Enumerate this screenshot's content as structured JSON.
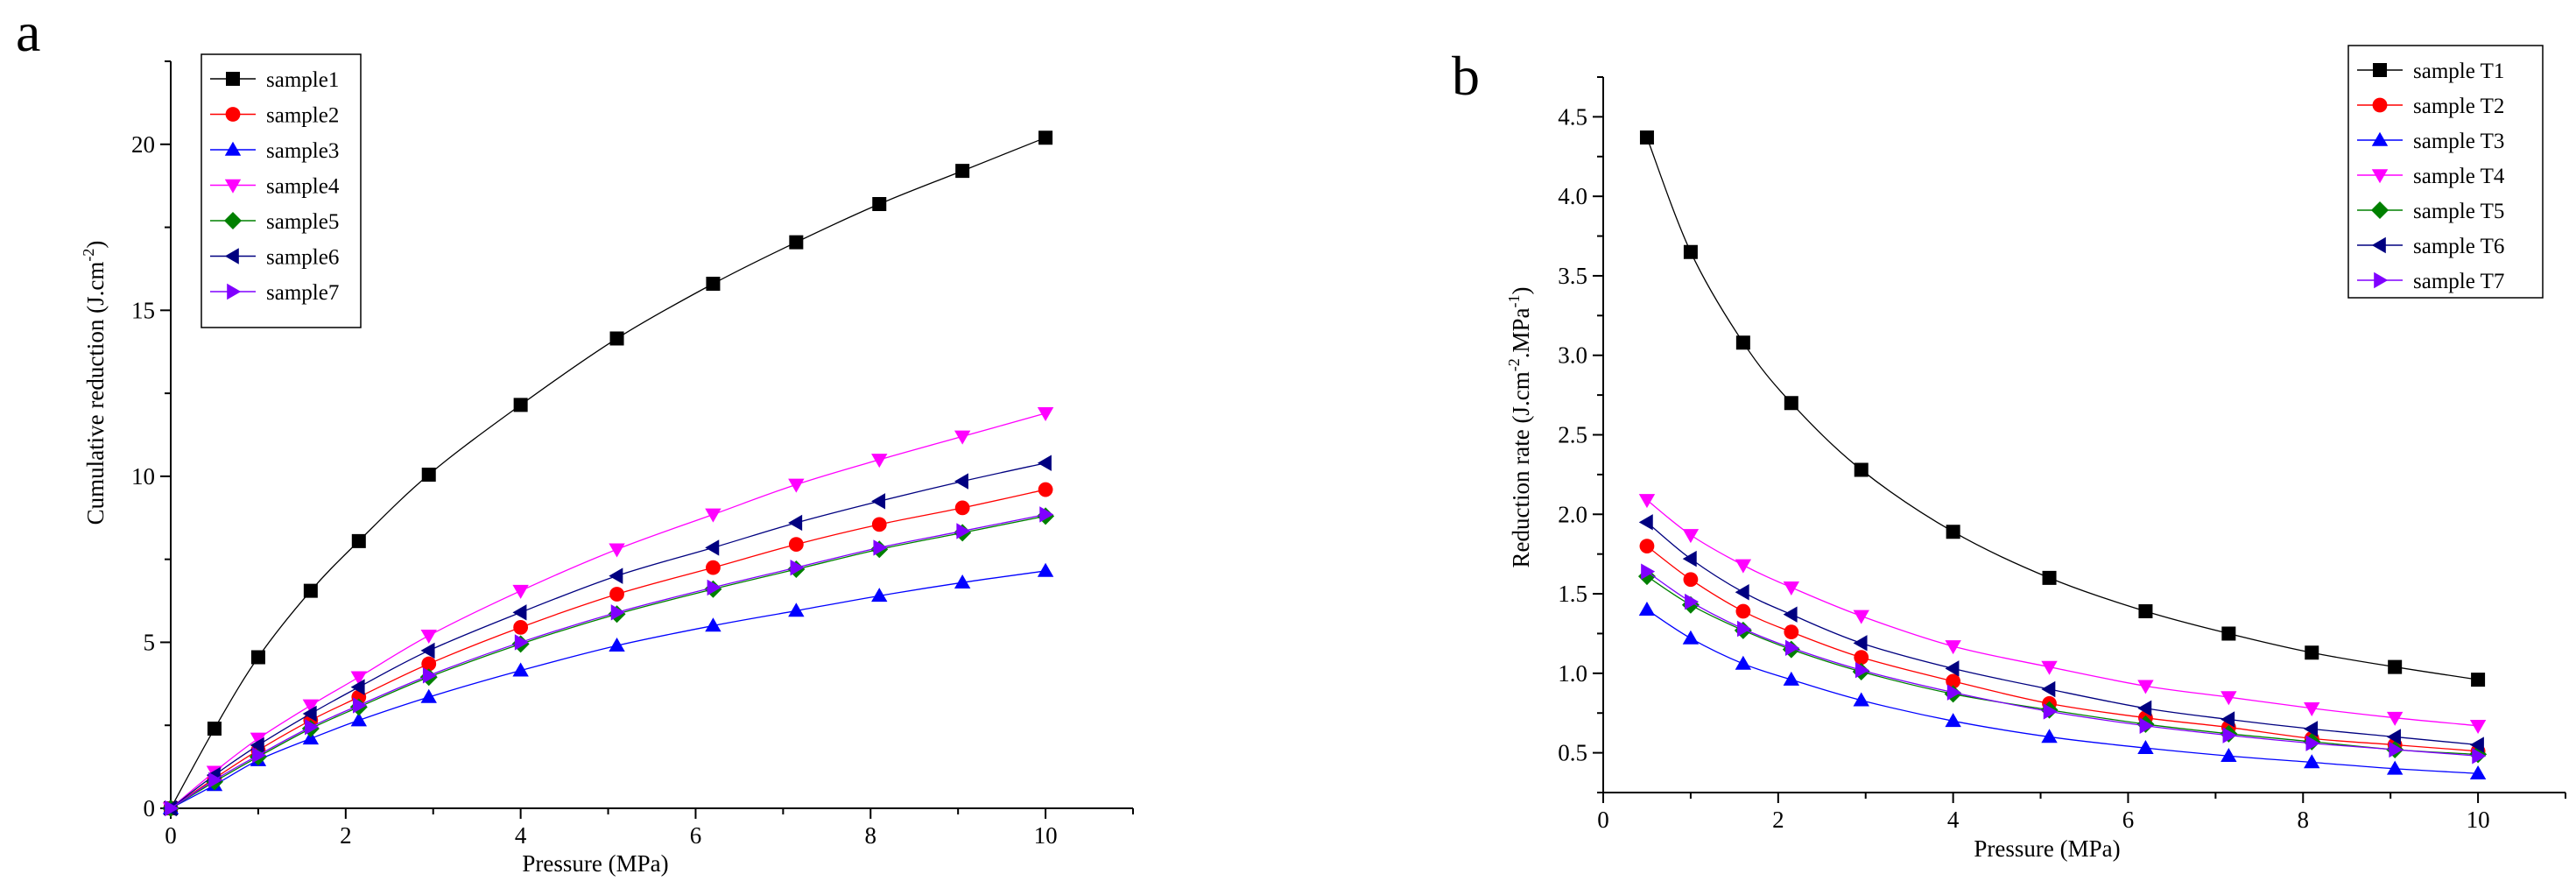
{
  "chart_data": [
    {
      "panel_label": "a",
      "type": "line",
      "title": "",
      "xlabel": "Pressure (MPa)",
      "ylabel_main": "Cumulative reduction (J.cm",
      "ylabel_sup1": "-2",
      "ylabel_end": ")",
      "xlim": [
        0,
        11
      ],
      "ylim": [
        0,
        22.5
      ],
      "xticks": [
        0,
        2,
        4,
        6,
        8,
        10
      ],
      "yticks": [
        0,
        5,
        10,
        15,
        20
      ],
      "x": [
        0,
        0.5,
        1,
        1.6,
        2.15,
        2.95,
        4,
        5.1,
        6.2,
        7.15,
        8.1,
        9.05,
        10
      ],
      "legend_position": "top-left",
      "series": [
        {
          "name": "sample1",
          "marker": "square",
          "color": "#000000",
          "values": [
            0,
            2.4,
            4.55,
            6.55,
            8.05,
            10.05,
            12.15,
            14.15,
            15.8,
            17.05,
            18.2,
            19.2,
            20.2
          ]
        },
        {
          "name": "sample2",
          "marker": "circle",
          "color": "#ff0000",
          "values": [
            0,
            0.9,
            1.75,
            2.65,
            3.35,
            4.35,
            5.45,
            6.45,
            7.25,
            7.95,
            8.55,
            9.05,
            9.6
          ]
        },
        {
          "name": "sample3",
          "marker": "triangle-up",
          "color": "#0000ff",
          "values": [
            0,
            0.7,
            1.45,
            2.1,
            2.65,
            3.35,
            4.15,
            4.9,
            5.5,
            5.95,
            6.4,
            6.8,
            7.15
          ]
        },
        {
          "name": "sample4",
          "marker": "triangle-down",
          "color": "#ff00ff",
          "values": [
            0,
            1.1,
            2.1,
            3.1,
            3.95,
            5.2,
            6.55,
            7.8,
            8.85,
            9.75,
            10.5,
            11.2,
            11.9
          ]
        },
        {
          "name": "sample5",
          "marker": "diamond",
          "color": "#008000",
          "values": [
            0,
            0.8,
            1.55,
            2.4,
            3.05,
            3.95,
            4.95,
            5.85,
            6.6,
            7.2,
            7.8,
            8.3,
            8.8
          ]
        },
        {
          "name": "sample6",
          "marker": "triangle-left",
          "color": "#000080",
          "values": [
            0,
            1.0,
            1.9,
            2.85,
            3.65,
            4.75,
            5.9,
            7.0,
            7.85,
            8.6,
            9.25,
            9.85,
            10.4
          ]
        },
        {
          "name": "sample7",
          "marker": "triangle-right",
          "color": "#8000ff",
          "values": [
            0,
            0.85,
            1.6,
            2.45,
            3.1,
            4.0,
            5.0,
            5.9,
            6.65,
            7.25,
            7.85,
            8.35,
            8.85
          ]
        }
      ]
    },
    {
      "panel_label": "b",
      "type": "line",
      "title": "",
      "xlabel": "Pressure (MPa)",
      "ylabel_main": "Reduction rate (J.cm",
      "ylabel_sup1": "-2",
      "ylabel_mid": ".MPa",
      "ylabel_sup2": "-1",
      "ylabel_end": ")",
      "xlim": [
        0,
        11
      ],
      "ylim": [
        0.25,
        4.75
      ],
      "xticks": [
        0,
        2,
        4,
        6,
        8,
        10
      ],
      "yticks": [
        0.5,
        1.0,
        1.5,
        2.0,
        2.5,
        3.0,
        3.5,
        4.0,
        4.5
      ],
      "x": [
        0.5,
        1,
        1.6,
        2.15,
        2.95,
        4,
        5.1,
        6.2,
        7.15,
        8.1,
        9.05,
        10
      ],
      "legend_position": "top-right",
      "series": [
        {
          "name": "sample T1",
          "marker": "square",
          "color": "#000000",
          "values": [
            4.37,
            3.65,
            3.08,
            2.7,
            2.28,
            1.89,
            1.6,
            1.39,
            1.25,
            1.13,
            1.04,
            0.96
          ]
        },
        {
          "name": "sample T2",
          "marker": "circle",
          "color": "#ff0000",
          "values": [
            1.8,
            1.59,
            1.39,
            1.26,
            1.1,
            0.95,
            0.81,
            0.72,
            0.66,
            0.59,
            0.55,
            0.51
          ]
        },
        {
          "name": "sample T3",
          "marker": "triangle-up",
          "color": "#0000ff",
          "values": [
            1.4,
            1.22,
            1.06,
            0.96,
            0.83,
            0.7,
            0.6,
            0.53,
            0.48,
            0.44,
            0.4,
            0.37
          ]
        },
        {
          "name": "sample T4",
          "marker": "triangle-down",
          "color": "#ff00ff",
          "values": [
            2.09,
            1.87,
            1.68,
            1.54,
            1.36,
            1.17,
            1.04,
            0.92,
            0.85,
            0.78,
            0.72,
            0.67
          ]
        },
        {
          "name": "sample T5",
          "marker": "diamond",
          "color": "#008000",
          "values": [
            1.61,
            1.43,
            1.27,
            1.15,
            1.01,
            0.87,
            0.77,
            0.68,
            0.62,
            0.57,
            0.52,
            0.49
          ]
        },
        {
          "name": "sample T6",
          "marker": "triangle-left",
          "color": "#000080",
          "values": [
            1.95,
            1.72,
            1.51,
            1.37,
            1.19,
            1.03,
            0.9,
            0.78,
            0.71,
            0.65,
            0.6,
            0.55
          ]
        },
        {
          "name": "sample T7",
          "marker": "triangle-right",
          "color": "#8000ff",
          "values": [
            1.64,
            1.45,
            1.28,
            1.16,
            1.02,
            0.88,
            0.76,
            0.67,
            0.61,
            0.56,
            0.52,
            0.48
          ]
        }
      ]
    }
  ]
}
